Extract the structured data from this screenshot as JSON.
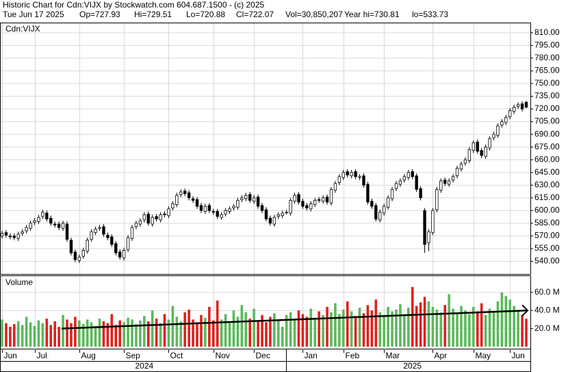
{
  "chart_data": {
    "type": "candlestick",
    "title": "Historic Chart for Cdn:VIJX by Stockwatch.com 604.687.1500 - (c) 2025",
    "info": [
      "Tue Jun 17 2025",
      "Op=727.93",
      "Hi=729.51",
      "Lo=720.88",
      "Cl=722.07",
      "Vol=30,850,207",
      "Year hi=730.81",
      "lo=533.73"
    ],
    "symbol_label": "Cdn:VIJX",
    "volume_label": "Volume",
    "categories": [
      "Jun",
      null,
      null,
      null,
      null,
      null,
      null,
      null,
      "Jul",
      null,
      null,
      null,
      null,
      null,
      null,
      null,
      null,
      null,
      null,
      "Aug",
      null,
      null,
      null,
      null,
      null,
      null,
      null,
      null,
      null,
      null,
      "Sep",
      null,
      null,
      null,
      null,
      null,
      null,
      null,
      null,
      null,
      null,
      "Oct",
      null,
      null,
      null,
      null,
      null,
      null,
      null,
      null,
      null,
      null,
      "Nov",
      null,
      null,
      null,
      null,
      null,
      null,
      null,
      null,
      null,
      "Dec",
      null,
      null,
      null,
      null,
      null,
      null,
      null,
      null,
      null,
      null,
      null,
      "Jan",
      null,
      null,
      null,
      null,
      null,
      null,
      null,
      null,
      null,
      "Feb",
      null,
      null,
      null,
      null,
      null,
      null,
      null,
      null,
      null,
      "Mar",
      null,
      null,
      null,
      null,
      null,
      null,
      null,
      null,
      null,
      null,
      null,
      "Apr",
      null,
      null,
      null,
      null,
      null,
      null,
      null,
      null,
      null,
      "May",
      null,
      null,
      null,
      null,
      null,
      null,
      null,
      null,
      "Jun",
      null,
      null,
      null,
      null
    ],
    "years": [
      null,
      null,
      null,
      null,
      null,
      null,
      null,
      null,
      null,
      null,
      null,
      null,
      null,
      null,
      null,
      null,
      null,
      null,
      null,
      null,
      null,
      null,
      null,
      null,
      null,
      null,
      null,
      null,
      null,
      null,
      null,
      null,
      null,
      null,
      null,
      "2024",
      null,
      null,
      null,
      null,
      null,
      null,
      null,
      null,
      null,
      null,
      null,
      null,
      null,
      null,
      null,
      null,
      null,
      null,
      null,
      null,
      null,
      null,
      null,
      null,
      null,
      null,
      null,
      null,
      null,
      null,
      null,
      null,
      null,
      null,
      null,
      null,
      null,
      null,
      null,
      null,
      null,
      null,
      null,
      null,
      null,
      null,
      null,
      null,
      null,
      null,
      null,
      null,
      null,
      null,
      null,
      null,
      null,
      null,
      null,
      null,
      null,
      null,
      null,
      null,
      null,
      "2025",
      null,
      null,
      null,
      null,
      null,
      null,
      null,
      null,
      null,
      null,
      null,
      null,
      null,
      null,
      null,
      null,
      null,
      null,
      null,
      null,
      null,
      null,
      null,
      null,
      null,
      null,
      null,
      null
    ],
    "open": [
      570,
      574,
      570,
      570,
      567,
      573,
      576,
      579,
      586,
      587,
      593,
      597,
      591,
      584,
      584,
      579,
      584,
      565,
      551,
      541,
      546,
      552,
      566,
      574,
      579,
      581,
      571,
      569,
      561,
      551,
      544,
      554,
      567,
      581,
      584,
      589,
      596,
      584,
      593,
      589,
      596,
      594,
      603,
      607,
      619,
      623,
      621,
      614,
      613,
      606,
      599,
      606,
      599,
      599,
      592,
      596,
      599,
      603,
      604,
      613,
      614,
      619,
      611,
      616,
      606,
      601,
      591,
      584,
      593,
      594,
      598,
      597,
      611,
      619,
      611,
      606,
      602,
      607,
      613,
      611,
      616,
      609,
      624,
      633,
      639,
      646,
      641,
      646,
      639,
      641,
      631,
      611,
      606,
      589,
      597,
      604,
      614,
      626,
      631,
      636,
      639,
      646,
      641,
      626,
      600,
      562,
      574,
      601,
      624,
      636,
      631,
      636,
      641,
      649,
      656,
      659,
      671,
      681,
      671,
      664,
      674,
      686,
      689,
      701,
      704,
      711,
      717,
      723,
      726,
      727.93
    ],
    "high": [
      576,
      577,
      573,
      573,
      575,
      578,
      583,
      588,
      591,
      595,
      601,
      600,
      594,
      587,
      587,
      588,
      587,
      568,
      554,
      548,
      556,
      568,
      578,
      581,
      583,
      584,
      574,
      572,
      564,
      554,
      556,
      571,
      583,
      588,
      591,
      598,
      599,
      595,
      596,
      598,
      599,
      605,
      611,
      621,
      625,
      626,
      624,
      617,
      616,
      609,
      608,
      609,
      602,
      602,
      598,
      603,
      605,
      608,
      615,
      618,
      621,
      622,
      618,
      619,
      609,
      604,
      594,
      595,
      598,
      600,
      601,
      615,
      621,
      622,
      614,
      609,
      611,
      615,
      616,
      618,
      619,
      628,
      635,
      643,
      648,
      649,
      648,
      649,
      643,
      644,
      634,
      614,
      609,
      601,
      608,
      618,
      628,
      635,
      638,
      643,
      648,
      649,
      644,
      629,
      603,
      578,
      603,
      628,
      638,
      639,
      638,
      643,
      653,
      658,
      663,
      675,
      683,
      684,
      674,
      678,
      688,
      693,
      703,
      708,
      713,
      721,
      725,
      728,
      729,
      729.51
    ],
    "low": [
      567,
      568,
      566,
      565,
      564,
      570,
      573,
      576,
      583,
      584,
      590,
      587,
      582,
      580,
      577,
      576,
      563,
      547,
      539,
      538,
      543,
      549,
      563,
      571,
      576,
      569,
      565,
      557,
      547,
      542,
      541,
      551,
      564,
      578,
      581,
      586,
      582,
      581,
      587,
      586,
      592,
      591,
      600,
      604,
      616,
      617,
      612,
      609,
      602,
      597,
      596,
      597,
      595,
      590,
      589,
      593,
      596,
      600,
      601,
      610,
      611,
      609,
      608,
      602,
      597,
      587,
      582,
      581,
      590,
      591,
      595,
      594,
      608,
      607,
      602,
      600,
      599,
      604,
      609,
      608,
      607,
      606,
      621,
      630,
      636,
      639,
      638,
      637,
      636,
      627,
      607,
      602,
      587,
      586,
      594,
      601,
      611,
      623,
      628,
      633,
      636,
      637,
      622,
      612,
      550,
      552,
      571,
      598,
      621,
      629,
      628,
      633,
      638,
      646,
      653,
      656,
      668,
      667,
      662,
      661,
      671,
      683,
      686,
      698,
      701,
      708,
      714,
      720,
      717,
      720.88
    ],
    "close": [
      573,
      571,
      569,
      568,
      572,
      575,
      580,
      585,
      588,
      592,
      598,
      590,
      585,
      583,
      580,
      585,
      566,
      550,
      542,
      545,
      553,
      565,
      575,
      578,
      580,
      572,
      568,
      560,
      550,
      545,
      553,
      568,
      580,
      585,
      588,
      595,
      585,
      592,
      590,
      595,
      595,
      602,
      608,
      618,
      622,
      620,
      615,
      612,
      605,
      600,
      605,
      600,
      598,
      593,
      595,
      600,
      602,
      605,
      612,
      615,
      618,
      612,
      615,
      605,
      600,
      590,
      585,
      592,
      595,
      597,
      598,
      612,
      618,
      610,
      605,
      603,
      608,
      612,
      612,
      615,
      610,
      625,
      632,
      640,
      645,
      642,
      645,
      640,
      640,
      630,
      610,
      605,
      590,
      598,
      605,
      615,
      625,
      632,
      635,
      640,
      645,
      640,
      625,
      615,
      560,
      575,
      600,
      625,
      635,
      632,
      635,
      640,
      650,
      655,
      660,
      672,
      680,
      670,
      665,
      675,
      685,
      690,
      700,
      705,
      710,
      718,
      722,
      725,
      720,
      722.07
    ],
    "volume": [
      30,
      26,
      22,
      25,
      28,
      24,
      33,
      27,
      23,
      29,
      26,
      31,
      24,
      28,
      22,
      35,
      30,
      26,
      33,
      29,
      25,
      30,
      27,
      23,
      31,
      28,
      26,
      36,
      24,
      29,
      27,
      32,
      30,
      25,
      29,
      34,
      28,
      40,
      31,
      26,
      36,
      30,
      45,
      33,
      28,
      38,
      41,
      30,
      27,
      35,
      32,
      44,
      29,
      51,
      30,
      36,
      28,
      40,
      33,
      46,
      38,
      31,
      42,
      29,
      35,
      27,
      33,
      37,
      30,
      22,
      35,
      38,
      31,
      40,
      36,
      33,
      42,
      30,
      39,
      35,
      44,
      38,
      48,
      36,
      41,
      50,
      39,
      34,
      43,
      37,
      46,
      40,
      52,
      38,
      35,
      44,
      39,
      41,
      47,
      36,
      43,
      66,
      45,
      49,
      55,
      50,
      44,
      41,
      38,
      46,
      58,
      42,
      37,
      45,
      40,
      36,
      44,
      39,
      48,
      35,
      42,
      38,
      50,
      60,
      56,
      52,
      45,
      40,
      35,
      30.85
    ],
    "volume_trend": {
      "start": 20,
      "end": 40
    },
    "up_color": "#5cb85c",
    "down_color": "#e0201c",
    "ylim": [
      525,
      822
    ],
    "yticks": [
      {
        "value": 540,
        "label": "540.00"
      },
      {
        "value": 555,
        "label": "555.00"
      },
      {
        "value": 570,
        "label": "570.00"
      },
      {
        "value": 585,
        "label": "585.00"
      },
      {
        "value": 600,
        "label": "600.00"
      },
      {
        "value": 615,
        "label": "615.00"
      },
      {
        "value": 630,
        "label": "630.00"
      },
      {
        "value": 645,
        "label": "645.00"
      },
      {
        "value": 660,
        "label": "660.00"
      },
      {
        "value": 675,
        "label": "675.00"
      },
      {
        "value": 690,
        "label": "690.00"
      },
      {
        "value": 705,
        "label": "705.00"
      },
      {
        "value": 720,
        "label": "720.00"
      },
      {
        "value": 735,
        "label": "735.00"
      },
      {
        "value": 750,
        "label": "750.00"
      },
      {
        "value": 765,
        "label": "765.00"
      },
      {
        "value": 780,
        "label": "780.00"
      },
      {
        "value": 795,
        "label": "795.00"
      },
      {
        "value": 810,
        "label": "810.00"
      }
    ],
    "y2lim": [
      -3,
      78
    ],
    "y2ticks": [
      {
        "value": 20,
        "label": "20.0 M"
      },
      {
        "value": 40,
        "label": "40.0 M"
      },
      {
        "value": 60,
        "label": "60.0 M"
      }
    ],
    "grid": true
  }
}
